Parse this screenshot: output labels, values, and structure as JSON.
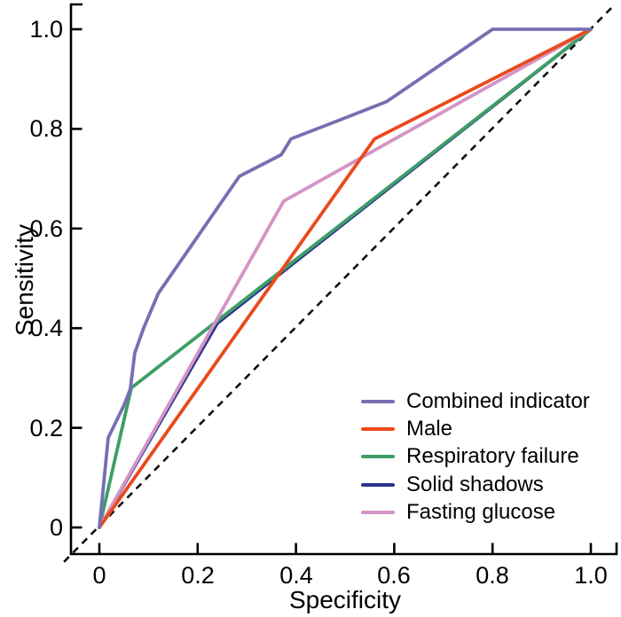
{
  "chart_data": {
    "type": "line",
    "title": "",
    "xlabel": "Specificity",
    "ylabel": "Sensitivity",
    "xlim": [
      0,
      1.0
    ],
    "ylim": [
      0,
      1.0
    ],
    "grid": false,
    "axis_color": "#000000",
    "legend_position": "lower-right-inside",
    "x_ticks": [
      0,
      0.2,
      0.4,
      0.6,
      0.8,
      1.0
    ],
    "x_ticklabels": [
      "0",
      "0.2",
      "0.4",
      "0.6",
      "0.8",
      "1.0"
    ],
    "y_ticks": [
      1.0,
      0.8,
      0.6,
      0.4,
      0.2,
      0
    ],
    "y_ticklabels": [
      "1.0",
      "0.8",
      "0.6",
      "0.4",
      "0.2",
      "0"
    ],
    "reference_line": {
      "name": "chance-diagonal",
      "style": "dashed",
      "color": "#111111",
      "points": [
        [
          -0.072,
          -0.069
        ],
        [
          1.047,
          1.048
        ]
      ]
    },
    "series": [
      {
        "name": "Combined indicator",
        "color": "#7570b3",
        "z": 6,
        "points": [
          [
            0,
            0
          ],
          [
            0.018,
            0.18
          ],
          [
            0.05,
            0.245
          ],
          [
            0.063,
            0.278
          ],
          [
            0.072,
            0.35
          ],
          [
            0.09,
            0.4
          ],
          [
            0.12,
            0.47
          ],
          [
            0.285,
            0.705
          ],
          [
            0.37,
            0.748
          ],
          [
            0.39,
            0.78
          ],
          [
            0.5,
            0.822
          ],
          [
            0.585,
            0.855
          ],
          [
            0.8,
            1.0
          ],
          [
            1.0,
            1.0
          ]
        ]
      },
      {
        "name": "Male",
        "color": "#ea4a1c",
        "z": 5,
        "points": [
          [
            0,
            0
          ],
          [
            0.56,
            0.78
          ],
          [
            1.0,
            1.0
          ]
        ]
      },
      {
        "name": "Respiratory failure",
        "color": "#3f9e66",
        "z": 3,
        "points": [
          [
            0,
            0
          ],
          [
            0.065,
            0.28
          ],
          [
            1.0,
            1.0
          ]
        ]
      },
      {
        "name": "Solid shadows",
        "color": "#2b3491",
        "z": 2,
        "points": [
          [
            0,
            0
          ],
          [
            0.24,
            0.41
          ],
          [
            1.0,
            1.0
          ]
        ]
      },
      {
        "name": "Fasting glucose",
        "color": "#d494c4",
        "z": 4,
        "points": [
          [
            0,
            0
          ],
          [
            0.375,
            0.655
          ],
          [
            1.0,
            1.0
          ]
        ]
      }
    ]
  }
}
